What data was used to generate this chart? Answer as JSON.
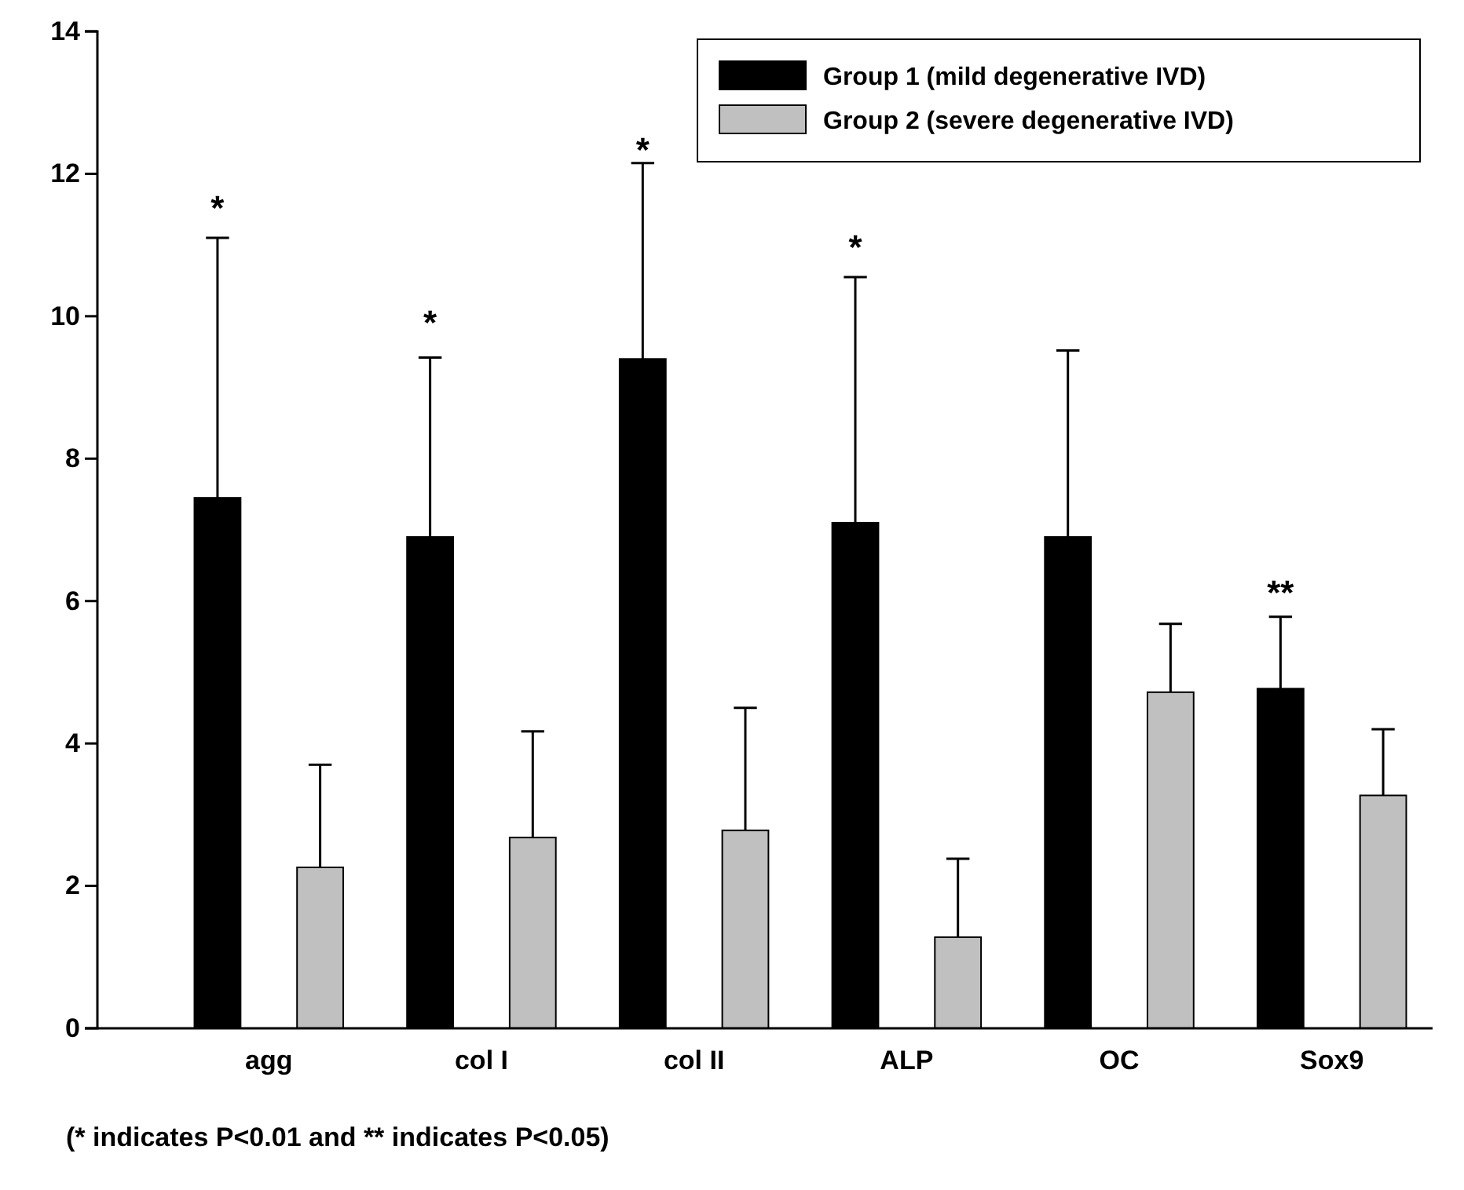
{
  "chart_data": {
    "type": "bar",
    "categories": [
      "agg",
      "col I",
      "col II",
      "ALP",
      "OC",
      "Sox9"
    ],
    "series": [
      {
        "name": "Group 1 (mild degenerative IVD)",
        "color": "#000000",
        "values": [
          7.45,
          6.9,
          9.4,
          7.1,
          6.9,
          4.77
        ],
        "errors": [
          [
            7.45,
            11.1
          ],
          [
            6.9,
            9.42
          ],
          [
            9.4,
            12.15
          ],
          [
            7.1,
            10.55
          ],
          [
            6.9,
            9.52
          ],
          [
            4.77,
            5.78
          ]
        ]
      },
      {
        "name": "Group 2 (severe degenerative IVD)",
        "color": "#c0c0c0",
        "values": [
          2.26,
          2.68,
          2.78,
          1.28,
          4.72,
          3.27
        ],
        "errors": [
          [
            2.26,
            3.7
          ],
          [
            2.68,
            4.17
          ],
          [
            2.78,
            4.5
          ],
          [
            1.28,
            2.38
          ],
          [
            4.72,
            5.68
          ],
          [
            3.27,
            4.2
          ]
        ]
      }
    ],
    "ylim": [
      0,
      14
    ],
    "yticks": [
      0,
      2,
      4,
      6,
      8,
      10,
      12,
      14
    ],
    "grid": false,
    "legend": "top right",
    "annotations": [
      "*",
      "*",
      "*",
      "*",
      "**",
      "(* indicates P<0.01 and ** indicates P<0.05)"
    ]
  }
}
